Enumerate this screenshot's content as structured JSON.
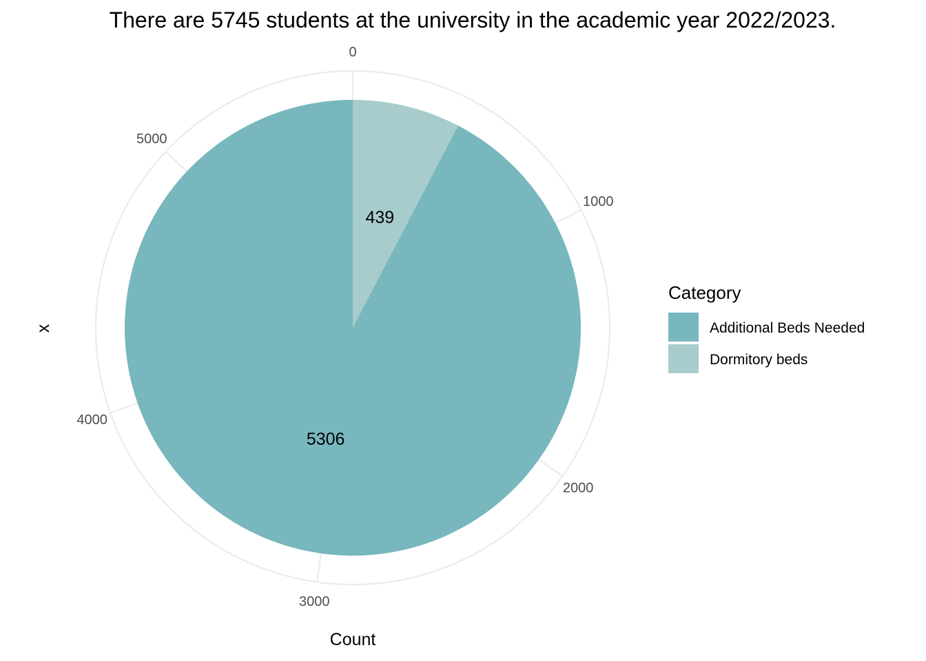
{
  "chart_data": {
    "type": "pie",
    "title": "There are 5745 students at the university in the academic year 2022/2023.",
    "xlabel": "Count",
    "ylabel": "x",
    "total": 5745,
    "slices": [
      {
        "name": "Dormitory beds",
        "value": 439,
        "label": "439",
        "color": "#a8cccb"
      },
      {
        "name": "Additional Beds Needed",
        "value": 5306,
        "label": "5306",
        "color": "#77b7bd"
      }
    ],
    "ticks": [
      {
        "value": 0,
        "label": "0"
      },
      {
        "value": 1000,
        "label": "1000"
      },
      {
        "value": 2000,
        "label": "2000"
      },
      {
        "value": 3000,
        "label": "3000"
      },
      {
        "value": 4000,
        "label": "4000"
      },
      {
        "value": 5000,
        "label": "5000"
      }
    ],
    "grid": true,
    "legend": {
      "title": "Category",
      "position": "right",
      "entries": [
        {
          "label": "Additional Beds Needed",
          "color": "#77b7bd"
        },
        {
          "label": "Dormitory beds",
          "color": "#a8cccb"
        }
      ]
    }
  }
}
